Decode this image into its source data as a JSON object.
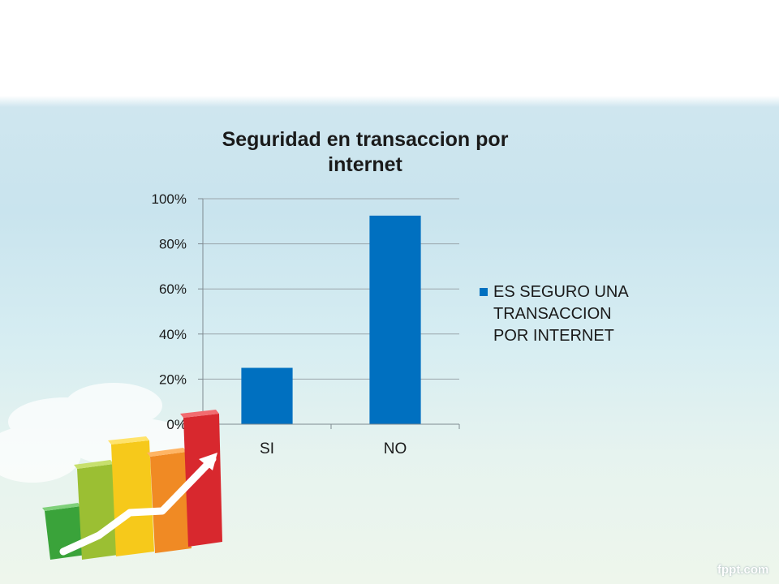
{
  "chart_data": {
    "type": "bar",
    "title": "Seguridad en transaccion por internet",
    "categories": [
      "SI",
      "NO"
    ],
    "series": [
      {
        "name": "ES SEGURO UNA TRANSACCION POR INTERNET",
        "values": [
          0.25,
          0.925
        ],
        "color": "#0070c0"
      }
    ],
    "y_ticks": [
      "0%",
      "20%",
      "40%",
      "60%",
      "80%",
      "100%"
    ],
    "ylim": [
      0,
      1
    ],
    "grid": true,
    "legend_position": "right",
    "xlabel": "",
    "ylabel": ""
  },
  "watermark": "fppt.com",
  "decoration_icon": "growth-bar-chart-icon"
}
